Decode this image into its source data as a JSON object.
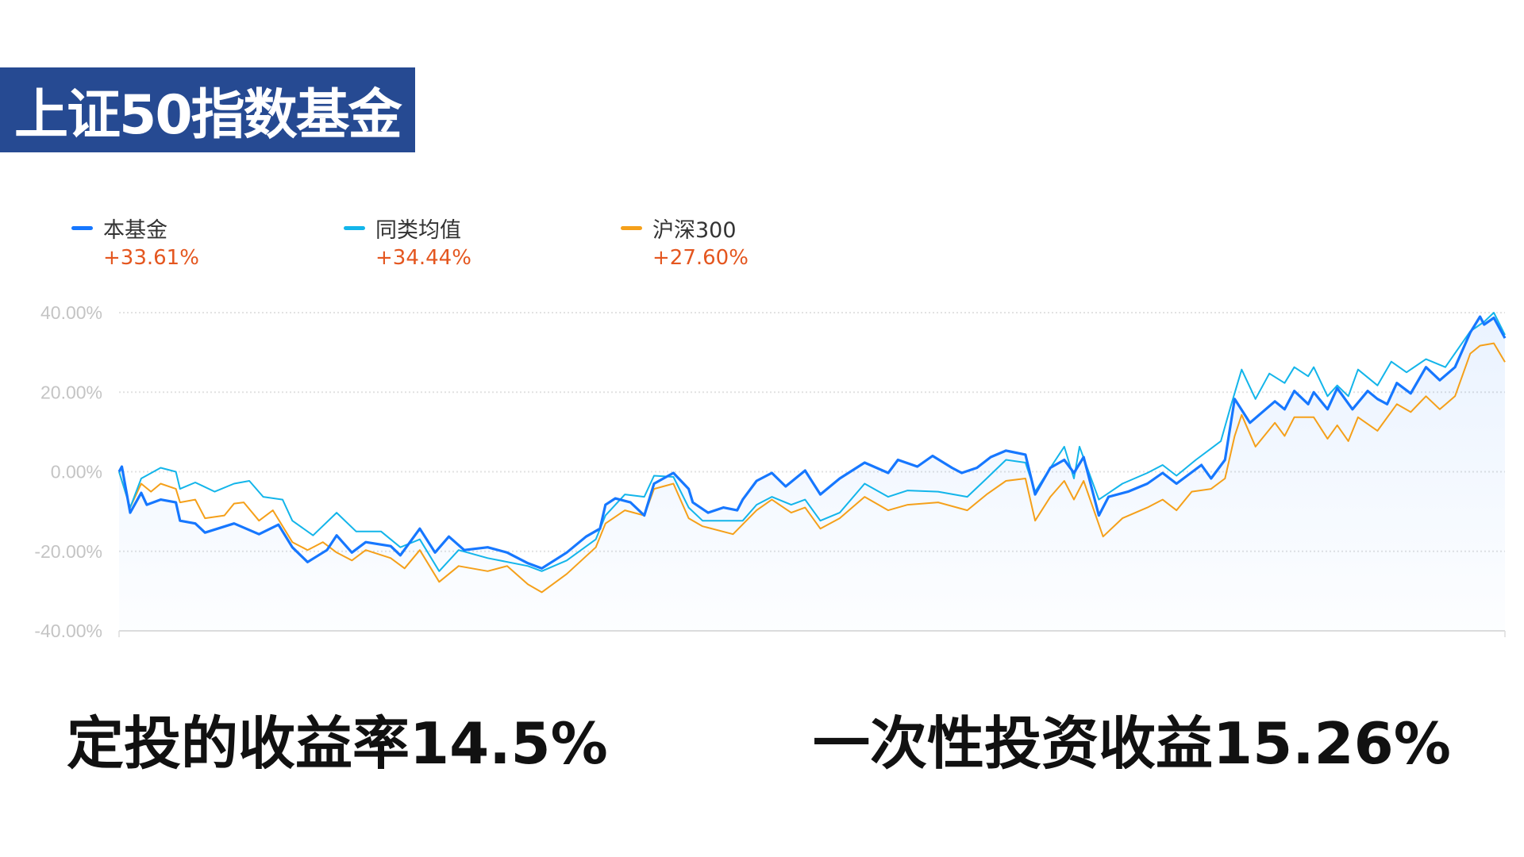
{
  "title": "上证50指数基金",
  "legend": [
    {
      "name": "本基金",
      "value": "+33.61%",
      "color": "#1677ff"
    },
    {
      "name": "同类均值",
      "value": "+34.44%",
      "color": "#13b5ea"
    },
    {
      "name": "沪深300",
      "value": "+27.60%",
      "color": "#f5a01a"
    }
  ],
  "bottom_text": {
    "left": "定投的收益率14.5%",
    "right": "一次性投资收益15.26%"
  },
  "chart_data": {
    "type": "line",
    "ylim": [
      -40,
      40
    ],
    "yticks": [
      "40.00%",
      "20.00%",
      "0.00%",
      "-20.00%",
      "-40.00%"
    ],
    "ytick_values": [
      40,
      20,
      0,
      -20,
      -40
    ],
    "x_unit": "percent of time span (no x labels shown)",
    "xlim": [
      0,
      100
    ],
    "grid": "horizontal dotted",
    "legend_placement": "top-left",
    "area_fill_series": "本基金",
    "series": [
      {
        "name": "本基金",
        "color": "#1677ff",
        "points": [
          [
            0,
            0
          ],
          [
            0.2,
            1.3
          ],
          [
            0.8,
            -10.3
          ],
          [
            1.6,
            -5.3
          ],
          [
            2.0,
            -8.3
          ],
          [
            3.0,
            -7
          ],
          [
            4.1,
            -7.7
          ],
          [
            4.4,
            -12.3
          ],
          [
            5.5,
            -13
          ],
          [
            6.2,
            -15.3
          ],
          [
            8.3,
            -13
          ],
          [
            10.1,
            -15.7
          ],
          [
            11.5,
            -13.3
          ],
          [
            12.5,
            -19
          ],
          [
            13.6,
            -22.7
          ],
          [
            15.0,
            -19.7
          ],
          [
            15.7,
            -16
          ],
          [
            16.8,
            -20.3
          ],
          [
            17.8,
            -17.7
          ],
          [
            19.6,
            -18.7
          ],
          [
            20.3,
            -21
          ],
          [
            21.7,
            -14.3
          ],
          [
            22.8,
            -20.3
          ],
          [
            23.8,
            -16.3
          ],
          [
            24.9,
            -19.7
          ],
          [
            26.6,
            -19
          ],
          [
            28.0,
            -20.3
          ],
          [
            29.5,
            -23
          ],
          [
            30.5,
            -24.3
          ],
          [
            32.3,
            -20.3
          ],
          [
            33.7,
            -16.3
          ],
          [
            34.7,
            -14.3
          ],
          [
            35.1,
            -8.3
          ],
          [
            35.8,
            -6.7
          ],
          [
            36.9,
            -7.7
          ],
          [
            37.9,
            -11
          ],
          [
            38.6,
            -3
          ],
          [
            40.0,
            -0.3
          ],
          [
            41.1,
            -4.3
          ],
          [
            41.4,
            -7.7
          ],
          [
            42.5,
            -10.3
          ],
          [
            43.6,
            -9
          ],
          [
            44.6,
            -9.7
          ],
          [
            45.0,
            -7
          ],
          [
            46.0,
            -2.3
          ],
          [
            47.1,
            -0.3
          ],
          [
            48.1,
            -3.7
          ],
          [
            49.5,
            0.3
          ],
          [
            50.6,
            -5.7
          ],
          [
            52.0,
            -1.7
          ],
          [
            53.8,
            2.3
          ],
          [
            55.5,
            -0.3
          ],
          [
            56.2,
            3
          ],
          [
            57.6,
            1.3
          ],
          [
            58.7,
            4
          ],
          [
            60.1,
            1
          ],
          [
            60.8,
            -0.3
          ],
          [
            61.9,
            1
          ],
          [
            62.9,
            3.7
          ],
          [
            64.0,
            5.3
          ],
          [
            65.4,
            4.3
          ],
          [
            66.1,
            -5.7
          ],
          [
            67.2,
            1
          ],
          [
            68.2,
            3
          ],
          [
            68.9,
            -0.3
          ],
          [
            69.6,
            3.7
          ],
          [
            70.7,
            -11
          ],
          [
            71.4,
            -6.3
          ],
          [
            72.8,
            -5
          ],
          [
            74.2,
            -3
          ],
          [
            75.3,
            -0.3
          ],
          [
            76.3,
            -3
          ],
          [
            78.1,
            1.7
          ],
          [
            78.8,
            -1.7
          ],
          [
            79.8,
            3
          ],
          [
            80.5,
            18.3
          ],
          [
            81.6,
            12.3
          ],
          [
            83.4,
            17.7
          ],
          [
            84.1,
            15.7
          ],
          [
            84.8,
            20.3
          ],
          [
            85.8,
            17
          ],
          [
            86.2,
            20
          ],
          [
            87.2,
            15.7
          ],
          [
            87.9,
            21
          ],
          [
            89.0,
            15.7
          ],
          [
            90.1,
            20.3
          ],
          [
            90.8,
            18.3
          ],
          [
            91.5,
            17
          ],
          [
            92.2,
            22.3
          ],
          [
            93.2,
            19.7
          ],
          [
            94.3,
            26.3
          ],
          [
            95.3,
            23
          ],
          [
            96.4,
            26.3
          ],
          [
            97.5,
            35
          ],
          [
            98.2,
            39
          ],
          [
            98.5,
            37
          ],
          [
            99.2,
            38.7
          ],
          [
            100,
            33.6
          ]
        ]
      },
      {
        "name": "同类均值",
        "color": "#13b5ea",
        "points": [
          [
            0,
            0
          ],
          [
            0.8,
            -9
          ],
          [
            1.6,
            -1.7
          ],
          [
            3.0,
            1
          ],
          [
            4.1,
            0
          ],
          [
            4.4,
            -4.3
          ],
          [
            5.5,
            -2.7
          ],
          [
            6.9,
            -5
          ],
          [
            8.3,
            -3
          ],
          [
            9.4,
            -2.3
          ],
          [
            10.4,
            -6.3
          ],
          [
            11.8,
            -7
          ],
          [
            12.5,
            -12.3
          ],
          [
            14.0,
            -16
          ],
          [
            15.7,
            -10.3
          ],
          [
            17.1,
            -15
          ],
          [
            18.9,
            -15
          ],
          [
            20.3,
            -19
          ],
          [
            21.7,
            -17
          ],
          [
            23.1,
            -25
          ],
          [
            24.5,
            -19.7
          ],
          [
            26.6,
            -21.7
          ],
          [
            29.5,
            -23.7
          ],
          [
            30.5,
            -25
          ],
          [
            32.3,
            -22.3
          ],
          [
            34.4,
            -17
          ],
          [
            35.1,
            -11
          ],
          [
            36.5,
            -5.7
          ],
          [
            37.9,
            -6.3
          ],
          [
            38.6,
            -1
          ],
          [
            40.0,
            -1.3
          ],
          [
            41.1,
            -9
          ],
          [
            42.1,
            -12.3
          ],
          [
            45.0,
            -12.3
          ],
          [
            46.0,
            -8.3
          ],
          [
            47.1,
            -6.3
          ],
          [
            48.5,
            -8.3
          ],
          [
            49.5,
            -7
          ],
          [
            50.6,
            -12.3
          ],
          [
            52.0,
            -10.3
          ],
          [
            53.8,
            -3
          ],
          [
            55.5,
            -6.3
          ],
          [
            56.9,
            -4.7
          ],
          [
            59.1,
            -5
          ],
          [
            61.2,
            -6.3
          ],
          [
            62.6,
            -1.7
          ],
          [
            64.0,
            3
          ],
          [
            65.4,
            2.3
          ],
          [
            66.1,
            -5
          ],
          [
            67.2,
            1
          ],
          [
            68.2,
            6.3
          ],
          [
            68.9,
            -1.7
          ],
          [
            69.3,
            6.3
          ],
          [
            70.7,
            -7
          ],
          [
            72.4,
            -3
          ],
          [
            74.2,
            -0.3
          ],
          [
            75.3,
            1.7
          ],
          [
            76.3,
            -1
          ],
          [
            77.7,
            3
          ],
          [
            79.5,
            7.7
          ],
          [
            80.2,
            16.3
          ],
          [
            81.0,
            25.7
          ],
          [
            82.0,
            18.3
          ],
          [
            83.0,
            24.7
          ],
          [
            84.1,
            22.3
          ],
          [
            84.8,
            26.3
          ],
          [
            85.8,
            24
          ],
          [
            86.2,
            26.3
          ],
          [
            87.2,
            19
          ],
          [
            87.9,
            21.7
          ],
          [
            88.7,
            19
          ],
          [
            89.4,
            25.7
          ],
          [
            90.8,
            21.7
          ],
          [
            91.8,
            27.7
          ],
          [
            92.9,
            25
          ],
          [
            94.3,
            28.3
          ],
          [
            95.7,
            26.3
          ],
          [
            97.5,
            35.3
          ],
          [
            98.5,
            37.7
          ],
          [
            99.2,
            40
          ],
          [
            100,
            34.4
          ]
        ]
      },
      {
        "name": "沪深300",
        "color": "#f5a01a",
        "points": [
          [
            0,
            0
          ],
          [
            0.8,
            -9
          ],
          [
            1.6,
            -3
          ],
          [
            2.3,
            -5
          ],
          [
            3.0,
            -3
          ],
          [
            4.1,
            -4.3
          ],
          [
            4.4,
            -7.7
          ],
          [
            5.5,
            -7
          ],
          [
            6.2,
            -11.7
          ],
          [
            7.6,
            -11
          ],
          [
            8.3,
            -8
          ],
          [
            9.0,
            -7.7
          ],
          [
            10.1,
            -12.3
          ],
          [
            11.1,
            -9.7
          ],
          [
            12.5,
            -17.7
          ],
          [
            13.6,
            -19.7
          ],
          [
            14.7,
            -17.7
          ],
          [
            15.7,
            -20.3
          ],
          [
            16.8,
            -22.3
          ],
          [
            17.8,
            -19.7
          ],
          [
            19.6,
            -21.7
          ],
          [
            20.6,
            -24.3
          ],
          [
            21.7,
            -19.7
          ],
          [
            23.1,
            -27.7
          ],
          [
            24.5,
            -23.7
          ],
          [
            26.6,
            -25
          ],
          [
            28.0,
            -23.7
          ],
          [
            29.5,
            -28.3
          ],
          [
            30.5,
            -30.3
          ],
          [
            32.3,
            -25.7
          ],
          [
            34.4,
            -19
          ],
          [
            35.1,
            -13
          ],
          [
            36.5,
            -9.7
          ],
          [
            37.9,
            -11
          ],
          [
            38.6,
            -4.3
          ],
          [
            40.0,
            -3
          ],
          [
            41.1,
            -11.7
          ],
          [
            42.1,
            -13.7
          ],
          [
            44.3,
            -15.7
          ],
          [
            46.0,
            -9.7
          ],
          [
            47.1,
            -7
          ],
          [
            48.5,
            -10.3
          ],
          [
            49.5,
            -9
          ],
          [
            50.6,
            -14.3
          ],
          [
            52.0,
            -11.7
          ],
          [
            53.8,
            -6.3
          ],
          [
            55.5,
            -9.7
          ],
          [
            56.9,
            -8.3
          ],
          [
            59.1,
            -7.7
          ],
          [
            61.2,
            -9.7
          ],
          [
            62.6,
            -5.7
          ],
          [
            64.0,
            -2.3
          ],
          [
            65.4,
            -1.7
          ],
          [
            66.1,
            -12.3
          ],
          [
            67.2,
            -6.3
          ],
          [
            68.2,
            -2.3
          ],
          [
            68.9,
            -7
          ],
          [
            69.6,
            -2.3
          ],
          [
            71.0,
            -16.3
          ],
          [
            72.4,
            -11.7
          ],
          [
            74.2,
            -9
          ],
          [
            75.3,
            -7
          ],
          [
            76.3,
            -9.7
          ],
          [
            77.4,
            -5
          ],
          [
            78.8,
            -4.3
          ],
          [
            79.8,
            -1.7
          ],
          [
            80.5,
            9
          ],
          [
            81.0,
            14.3
          ],
          [
            82.0,
            6.3
          ],
          [
            83.4,
            12.3
          ],
          [
            84.1,
            9
          ],
          [
            84.8,
            13.7
          ],
          [
            86.2,
            13.7
          ],
          [
            87.2,
            8.3
          ],
          [
            87.9,
            11.7
          ],
          [
            88.7,
            7.7
          ],
          [
            89.4,
            13.7
          ],
          [
            90.8,
            10.3
          ],
          [
            92.2,
            17
          ],
          [
            93.2,
            15
          ],
          [
            94.3,
            19
          ],
          [
            95.3,
            15.7
          ],
          [
            96.4,
            19
          ],
          [
            97.5,
            29.7
          ],
          [
            98.2,
            31.7
          ],
          [
            99.2,
            32.3
          ],
          [
            100,
            27.6
          ]
        ]
      }
    ]
  }
}
